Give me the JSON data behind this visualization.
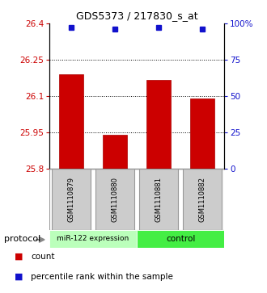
{
  "title": "GDS5373 / 217830_s_at",
  "samples": [
    "GSM1110879",
    "GSM1110880",
    "GSM1110881",
    "GSM1110882"
  ],
  "bar_values": [
    26.19,
    25.94,
    26.165,
    26.09
  ],
  "percentile_values": [
    97,
    96,
    97,
    96
  ],
  "ylim_left": [
    25.8,
    26.4
  ],
  "ylim_right": [
    0,
    100
  ],
  "yticks_left": [
    25.8,
    25.95,
    26.1,
    26.25,
    26.4
  ],
  "ytick_labels_left": [
    "25.8",
    "25.95",
    "26.1",
    "26.25",
    "26.4"
  ],
  "yticks_right": [
    0,
    25,
    50,
    75,
    100
  ],
  "ytick_labels_right": [
    "0",
    "25",
    "50",
    "75",
    "100%"
  ],
  "hlines": [
    25.95,
    26.1,
    26.25
  ],
  "bar_color": "#cc0000",
  "percentile_color": "#1111cc",
  "group1_label": "miR-122 expression",
  "group2_label": "control",
  "group1_color": "#bbffbb",
  "group2_color": "#44ee44",
  "protocol_label": "protocol",
  "legend_count_label": "count",
  "legend_pct_label": "percentile rank within the sample",
  "bar_width": 0.55,
  "sample_box_color": "#cccccc",
  "sample_box_edge": "#999999",
  "title_fontsize": 9,
  "tick_fontsize": 7.5,
  "sample_fontsize": 6,
  "legend_fontsize": 7.5,
  "protocol_fontsize": 8
}
